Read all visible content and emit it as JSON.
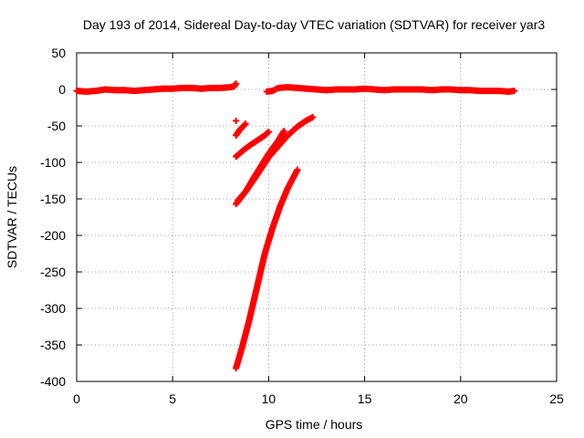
{
  "chart_data": {
    "type": "scatter",
    "title": "Day 193 of 2014, Sidereal Day-to-day VTEC variation (SDTVAR) for receiver yar3",
    "xlabel": "GPS time / hours",
    "ylabel": "SDTVAR / TECUs",
    "xlim": [
      0,
      25
    ],
    "ylim": [
      -400,
      50
    ],
    "xticks": [
      0,
      5,
      10,
      15,
      20,
      25
    ],
    "yticks": [
      50,
      0,
      -50,
      -100,
      -150,
      -200,
      -250,
      -300,
      -350,
      -400
    ],
    "grid": true,
    "marker": "plus",
    "color": "#ff0000",
    "series": [
      {
        "points": [
          [
            0.0,
            -2
          ],
          [
            0.5,
            -3
          ],
          [
            1.0,
            -2
          ],
          [
            1.5,
            0
          ],
          [
            2.0,
            -1
          ],
          [
            2.5,
            -1
          ],
          [
            3.0,
            -2
          ],
          [
            3.5,
            -1
          ],
          [
            4.0,
            0
          ],
          [
            4.5,
            1
          ],
          [
            5.0,
            1
          ],
          [
            5.5,
            2
          ],
          [
            6.0,
            2
          ],
          [
            6.5,
            1
          ],
          [
            7.0,
            2
          ],
          [
            7.5,
            2
          ],
          [
            8.0,
            3
          ],
          [
            8.2,
            4
          ],
          [
            8.3,
            8
          ]
        ]
      },
      {
        "points": [
          [
            9.9,
            -3
          ],
          [
            10.2,
            -2
          ],
          [
            10.5,
            2
          ],
          [
            11.0,
            3
          ],
          [
            11.5,
            2
          ],
          [
            12.0,
            1
          ],
          [
            12.5,
            0
          ],
          [
            13.0,
            -1
          ],
          [
            13.5,
            0
          ],
          [
            14.0,
            0
          ],
          [
            14.5,
            0
          ],
          [
            15.0,
            1
          ],
          [
            15.5,
            0
          ],
          [
            16.0,
            -1
          ],
          [
            16.5,
            0
          ],
          [
            17.0,
            0
          ],
          [
            17.5,
            0
          ],
          [
            18.0,
            0
          ],
          [
            18.5,
            -1
          ],
          [
            19.0,
            0
          ],
          [
            19.5,
            0
          ],
          [
            20.0,
            -1
          ],
          [
            20.5,
            -1
          ],
          [
            21.0,
            -2
          ],
          [
            21.5,
            -2
          ],
          [
            22.0,
            -2
          ],
          [
            22.5,
            -3
          ],
          [
            22.8,
            -2
          ]
        ]
      },
      {
        "points": [
          [
            8.3,
            -43
          ]
        ]
      },
      {
        "points": [
          [
            8.3,
            -63
          ],
          [
            8.5,
            -55
          ],
          [
            8.7,
            -50
          ],
          [
            8.8,
            -47
          ]
        ]
      },
      {
        "points": [
          [
            8.3,
            -92
          ],
          [
            8.7,
            -83
          ],
          [
            9.0,
            -77
          ],
          [
            9.4,
            -70
          ],
          [
            9.8,
            -63
          ],
          [
            10.0,
            -58
          ]
        ]
      },
      {
        "points": [
          [
            8.4,
            -152
          ],
          [
            8.8,
            -140
          ],
          [
            9.2,
            -122
          ],
          [
            9.6,
            -105
          ],
          [
            10.0,
            -88
          ],
          [
            10.5,
            -70
          ],
          [
            10.8,
            -57
          ]
        ]
      },
      {
        "points": [
          [
            8.3,
            -157
          ],
          [
            8.8,
            -140
          ],
          [
            9.4,
            -117
          ],
          [
            10.0,
            -93
          ],
          [
            10.5,
            -78
          ],
          [
            11.0,
            -63
          ],
          [
            11.5,
            -51
          ],
          [
            12.0,
            -42
          ],
          [
            12.3,
            -38
          ]
        ]
      },
      {
        "points": [
          [
            8.3,
            -382
          ],
          [
            8.6,
            -355
          ],
          [
            9.0,
            -315
          ],
          [
            9.4,
            -270
          ],
          [
            9.8,
            -225
          ],
          [
            10.2,
            -190
          ],
          [
            10.6,
            -160
          ],
          [
            11.0,
            -135
          ],
          [
            11.5,
            -110
          ]
        ]
      }
    ]
  }
}
